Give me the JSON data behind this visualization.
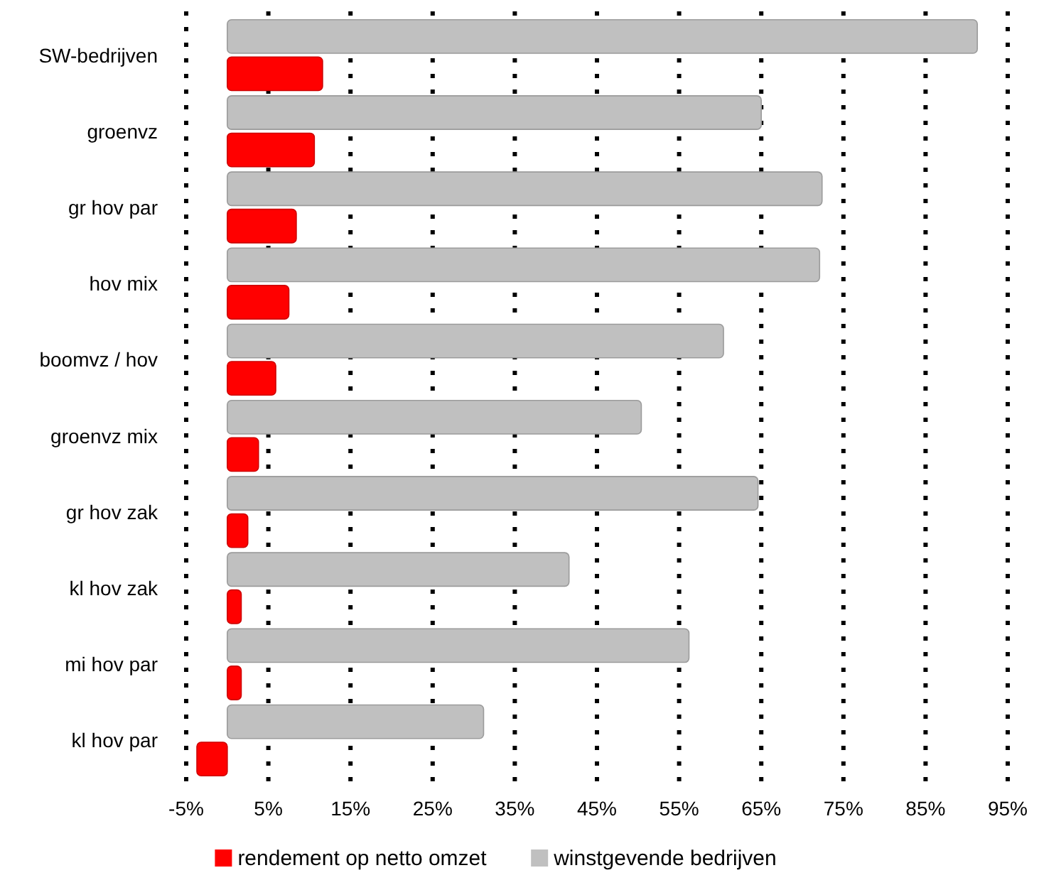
{
  "chart_data": {
    "type": "bar",
    "orientation": "horizontal",
    "categories": [
      "SW-bedrijven",
      "groenvz",
      "gr hov par",
      "hov mix",
      "boomvz / hov",
      "groenvz mix",
      "gr hov zak",
      "kl hov zak",
      "mi hov par",
      "kl hov par"
    ],
    "series": [
      {
        "name": "rendement op netto omzet",
        "color": "#ff0000",
        "values": [
          11.6,
          10.6,
          8.4,
          7.5,
          5.9,
          3.8,
          2.5,
          1.7,
          1.7,
          -3.7
        ]
      },
      {
        "name": "winstgevende bedrijven",
        "color": "#c0c0c0",
        "values": [
          91.3,
          65,
          72.4,
          72.1,
          60.4,
          50.4,
          64.6,
          41.6,
          56.2,
          31.2
        ]
      }
    ],
    "xlim": [
      -5,
      95
    ],
    "xticks": [
      {
        "value": -5,
        "label": "-5%"
      },
      {
        "value": 5,
        "label": "5%"
      },
      {
        "value": 15,
        "label": "15%"
      },
      {
        "value": 25,
        "label": "25%"
      },
      {
        "value": 35,
        "label": "35%"
      },
      {
        "value": 45,
        "label": "45%"
      },
      {
        "value": 55,
        "label": "55%"
      },
      {
        "value": 65,
        "label": "65%"
      },
      {
        "value": 75,
        "label": "75%"
      },
      {
        "value": 85,
        "label": "85%"
      },
      {
        "value": 95,
        "label": "95%"
      }
    ],
    "grid": "x",
    "legend": "bottom"
  }
}
